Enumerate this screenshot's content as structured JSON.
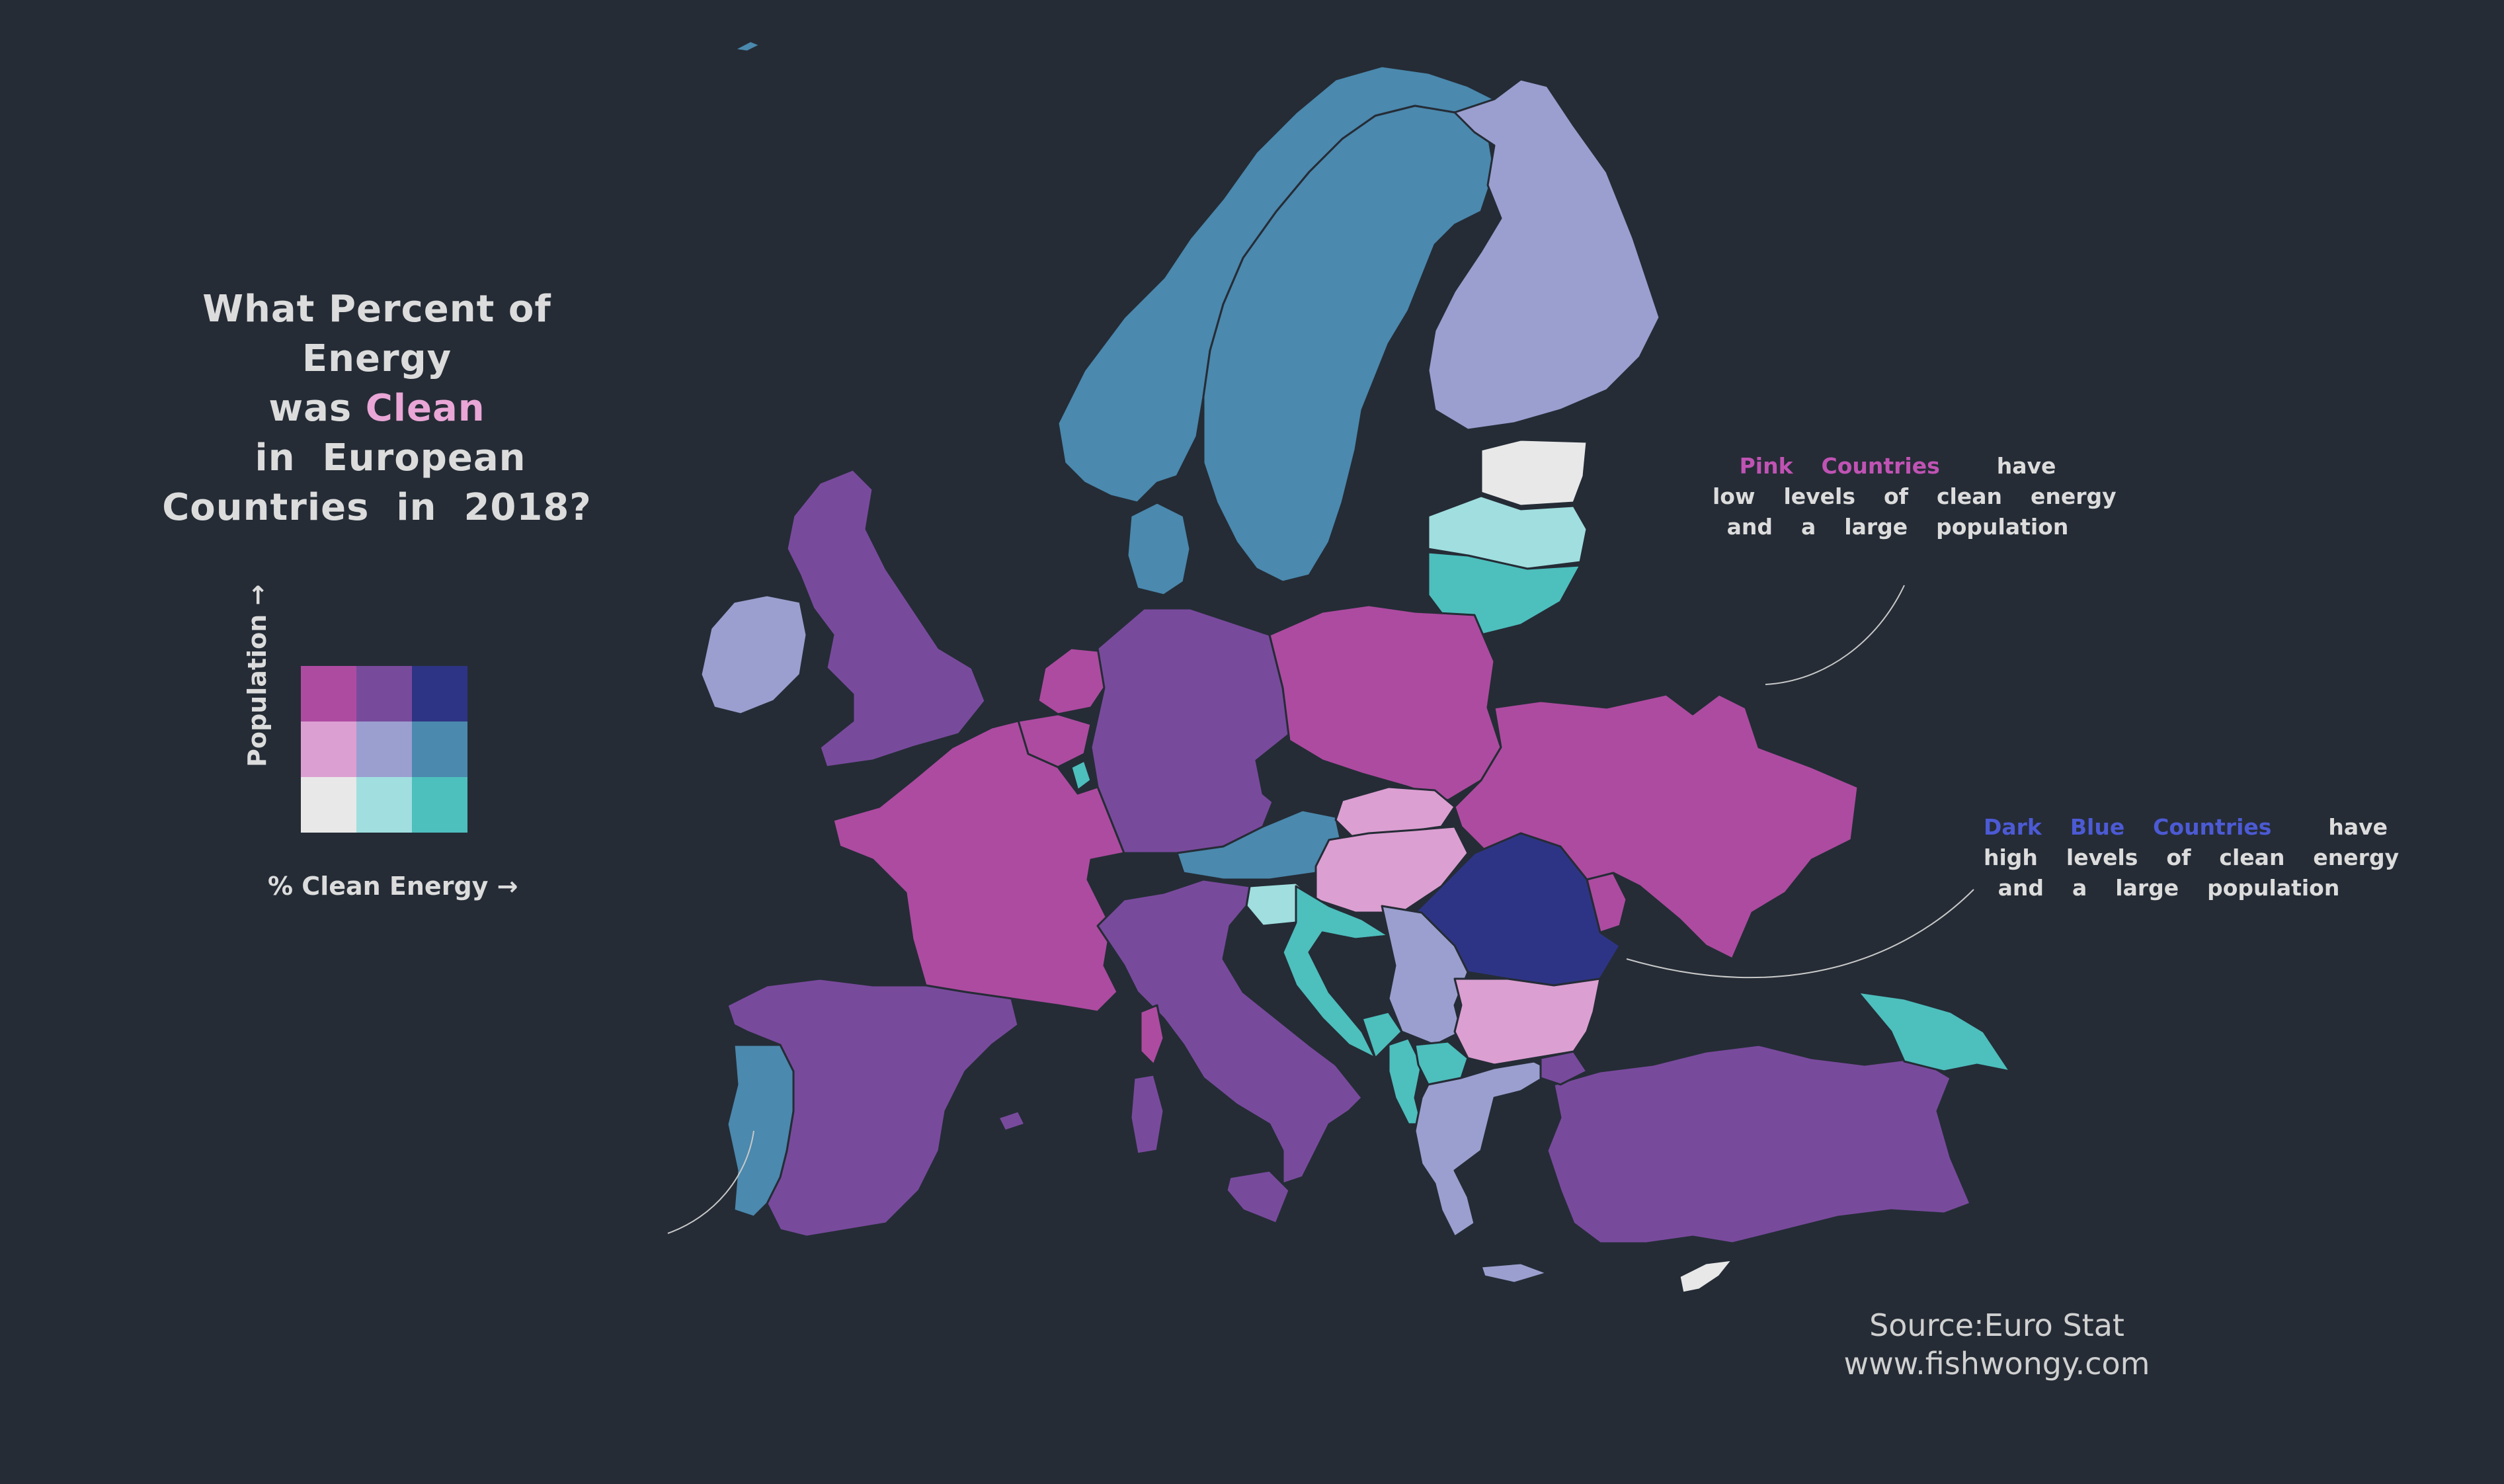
{
  "title": {
    "line1": "What Percent  of  Energy",
    "line2_pre": "was ",
    "line2_highlight": "Clean",
    "line2_post": "  in  European",
    "line3": "Countries  in  2018?"
  },
  "legend": {
    "y_label": "Population →",
    "x_label": "% Clean Energy →",
    "grid_colors": [
      [
        "#ad4ba0",
        "#784a9c",
        "#2e3485"
      ],
      [
        "#dc9fd2",
        "#9a9fcf",
        "#4b89ae"
      ],
      [
        "#e8e8e8",
        "#a0dedf",
        "#4dbfbd"
      ]
    ]
  },
  "annotations": {
    "pink": {
      "key": "Pink  Countries",
      "key_color": "#c053b4",
      "rest": "have",
      "line2": "low  levels  of  clean  energy",
      "line3": "and  a  large  population"
    },
    "blue": {
      "key": "Dark  Blue  Countries",
      "key_color": "#4c5ad4",
      "rest": "have",
      "line2": "high  levels  of  clean  energy",
      "line3": "and  a  large  population"
    }
  },
  "source": {
    "line1": "Source:Euro Stat",
    "line2": "www.fishwongy.com"
  },
  "colors": {
    "background": "#252c36",
    "high_pop_low_clean": "#ad4ba0",
    "high_pop_mid_clean": "#784a9c",
    "high_pop_high_clean": "#2e3485",
    "mid_pop_low_clean": "#dc9fd2",
    "mid_pop_mid_clean": "#9a9fcf",
    "mid_pop_high_clean": "#4b89ae",
    "low_pop_low_clean": "#e8e8e8",
    "low_pop_mid_clean": "#a0dedf",
    "low_pop_high_clean": "#4dbfbd"
  }
}
